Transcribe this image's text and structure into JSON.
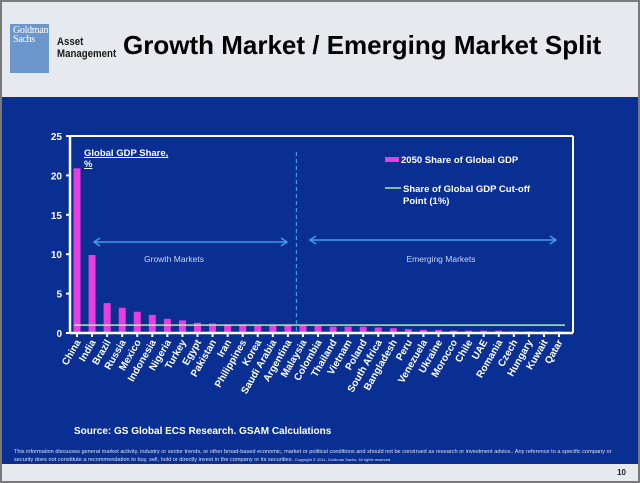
{
  "header": {
    "logo_line1": "Goldman",
    "logo_line2": "Sachs",
    "brand_line1": "Asset",
    "brand_line2": "Management",
    "title": "Growth Market / Emerging Market Split"
  },
  "footer": {
    "source": "Source: GS Global ECS Research. GSAM Calculations",
    "disclaimer": "This information discusses general market activity, industry or sector trends, or other broad-based economic, market or political conditions and should not be construed as research or investment advice.. Any reference to a specific company or security does not constitute a recommendation to buy, sell, hold or directly invest in the company or its securities.",
    "copyright": "Copyright © 2011, Goldman Sachs. All rights reserved.",
    "page_number": "10"
  },
  "colors": {
    "panel_bg": "#0a2f93",
    "bar": "#e83de0",
    "cutoff_line": "#b8e6a8",
    "arrow": "#3f9be8",
    "divider": "#3f9be8",
    "axis": "#ffffff"
  },
  "chart_data": {
    "type": "bar",
    "title": "Global GDP Share, %",
    "xlabel": "",
    "ylabel": "Global GDP Share, %",
    "ylim": [
      0,
      25
    ],
    "yticks": [
      0,
      5,
      10,
      15,
      20,
      25
    ],
    "grid": false,
    "legend_position": "top-right",
    "categories": [
      "China",
      "India",
      "Brazil",
      "Russia",
      "Mexico",
      "Indonesia",
      "Nigeria",
      "Turkey",
      "Egypt",
      "Pakistan",
      "Iran",
      "Philippines",
      "Korea",
      "Saudi Arabia",
      "Argentina",
      "Malaysia",
      "Colombia",
      "Thailand",
      "Vietnam",
      "Poland",
      "South Africa",
      "Bangladesh",
      "Peru",
      "Venezuela",
      "Ukraine",
      "Morocco",
      "Chile",
      "UAE",
      "Romania",
      "Czech",
      "Hungary",
      "Kuwait",
      "Qatar"
    ],
    "series": [
      {
        "name": "2050 Share of Global GDP",
        "type": "bar",
        "values": [
          20.9,
          9.9,
          3.8,
          3.2,
          2.7,
          2.3,
          1.8,
          1.6,
          1.3,
          1.2,
          1.1,
          1.1,
          1.0,
          1.0,
          1.0,
          0.9,
          0.9,
          0.8,
          0.8,
          0.8,
          0.7,
          0.6,
          0.5,
          0.4,
          0.4,
          0.3,
          0.3,
          0.3,
          0.3,
          0.2,
          0.2,
          0.2,
          0.2
        ]
      },
      {
        "name": "Share of Global GDP Cut-off Point (1%)",
        "type": "line",
        "value": 1
      }
    ],
    "legend": [
      "2050 Share of Global GDP",
      "Share of Global GDP Cut-off Point (1%)"
    ],
    "legend_line2": "Point (1%)",
    "legend_line1b": "Share of Global GDP Cut-off",
    "annotations": {
      "growth_markets": "Growth Markets",
      "emerging_markets": "Emerging Markets",
      "divider_after_category": "Argentina"
    }
  }
}
